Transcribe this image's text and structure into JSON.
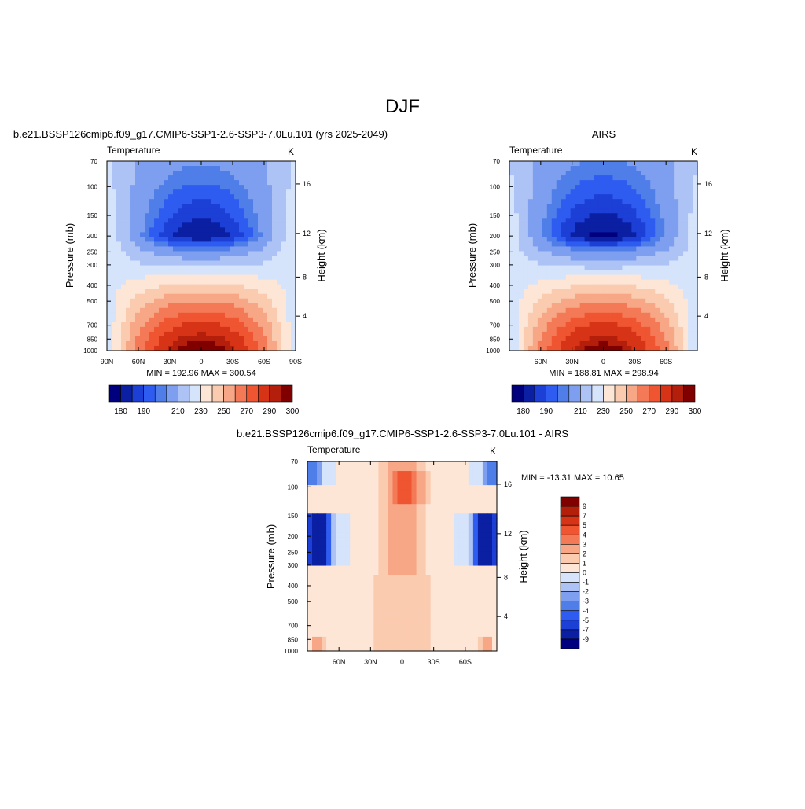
{
  "figure": {
    "title": "DJF"
  },
  "panels": [
    {
      "title": "b.e21.BSSP126cmip6.f09_g17.CMIP6-SSP1-2.6-SSP3-7.0Lu.101 (yrs 2025-2049)",
      "var_label": "Temperature",
      "units": "K",
      "ylabel": "Pressure (mb)",
      "right_label": "Height (km)",
      "stats": "MIN = 192.96  MAX = 300.54"
    },
    {
      "title": "AIRS",
      "var_label": "Temperature",
      "units": "K",
      "ylabel": "Pressure (mb)",
      "right_label": "Height (km)",
      "stats": "MIN = 188.81  MAX = 298.94"
    },
    {
      "title": "b.e21.BSSP126cmip6.f09_g17.CMIP6-SSP1-2.6-SSP3-7.0Lu.101 - AIRS",
      "var_label": "Temperature",
      "units": "K",
      "ylabel": "Pressure (mb)",
      "right_label": "Height (km)",
      "stats": "MIN = -13.31  MAX =  10.65"
    }
  ],
  "chart_data": [
    {
      "type": "heatmap",
      "title": "b.e21.BSSP126cmip6.f09_g17.CMIP6-SSP1-2.6-SSP3-7.0Lu.101 (yrs 2025-2049)",
      "ylabel": "Pressure (mb)",
      "y2label": "Height (km)",
      "x_ticks": [
        "90N",
        "60N",
        "30N",
        "0",
        "30S",
        "60S",
        "90S"
      ],
      "x_tick_values": [
        90,
        60,
        30,
        0,
        -30,
        -60,
        -90
      ],
      "xlim": [
        90,
        -90
      ],
      "y_ticks": [
        70,
        100,
        150,
        200,
        250,
        300,
        400,
        500,
        700,
        850,
        1000
      ],
      "ylim": [
        1000,
        70
      ],
      "y_scale": "log",
      "y2_ticks": [
        4,
        8,
        12,
        16
      ],
      "min": 192.96,
      "max": 300.54,
      "colorbar_levels": [
        180,
        185,
        190,
        195,
        200,
        210,
        220,
        230,
        240,
        250,
        260,
        270,
        280,
        290,
        295,
        300
      ],
      "colorbar_labels": [
        "180",
        "190",
        "210",
        "230",
        "250",
        "270",
        "290",
        "300"
      ],
      "colorbar_orientation": "horizontal"
    },
    {
      "type": "heatmap",
      "title": "AIRS",
      "ylabel": "Pressure (mb)",
      "y2label": "Height (km)",
      "x_ticks": [
        "60N",
        "30N",
        "0",
        "30S",
        "60S"
      ],
      "x_tick_values": [
        60,
        30,
        0,
        -30,
        -60
      ],
      "xlim": [
        90,
        -90
      ],
      "y_ticks": [
        70,
        100,
        150,
        200,
        250,
        300,
        400,
        500,
        700,
        850,
        1000
      ],
      "ylim": [
        1000,
        70
      ],
      "y_scale": "log",
      "y2_ticks": [
        4,
        8,
        12,
        16
      ],
      "min": 188.81,
      "max": 298.94,
      "colorbar_levels": [
        180,
        185,
        190,
        195,
        200,
        210,
        220,
        230,
        240,
        250,
        260,
        270,
        280,
        290,
        295,
        300
      ],
      "colorbar_labels": [
        "180",
        "190",
        "210",
        "230",
        "250",
        "270",
        "290",
        "300"
      ],
      "colorbar_orientation": "horizontal"
    },
    {
      "type": "heatmap",
      "title": "b.e21.BSSP126cmip6.f09_g17.CMIP6-SSP1-2.6-SSP3-7.0Lu.101 - AIRS",
      "ylabel": "Pressure (mb)",
      "y2label": "Height (km)",
      "x_ticks": [
        "60N",
        "30N",
        "0",
        "30S",
        "60S"
      ],
      "x_tick_values": [
        60,
        30,
        0,
        -30,
        -60
      ],
      "xlim": [
        90,
        -90
      ],
      "y_ticks": [
        70,
        100,
        150,
        200,
        250,
        300,
        400,
        500,
        700,
        850,
        1000
      ],
      "ylim": [
        1000,
        70
      ],
      "y_scale": "log",
      "y2_ticks": [
        4,
        8,
        12,
        16
      ],
      "min": -13.31,
      "max": 10.65,
      "colorbar_levels": [
        9,
        7,
        5,
        4,
        3,
        2,
        1,
        0,
        -1,
        -2,
        -3,
        -4,
        -5,
        -7,
        -9
      ],
      "colorbar_labels": [
        "9",
        "7",
        "5",
        "4",
        "3",
        "2",
        "1",
        "0",
        "-1",
        "-2",
        "-3",
        "-4",
        "-5",
        "-7",
        "-9"
      ],
      "colorbar_orientation": "vertical"
    }
  ],
  "colormaps": {
    "temperature": [
      "#00007f",
      "#0b1fa3",
      "#1c3fd6",
      "#2f5cf0",
      "#4f7ee8",
      "#7e9ff0",
      "#adc3f5",
      "#d5e3fb",
      "#fde6d6",
      "#fbcbb0",
      "#f7a686",
      "#f47a57",
      "#ef5530",
      "#d73417",
      "#b41f0c",
      "#800000"
    ],
    "difference": [
      "#800000",
      "#b41f0c",
      "#d73417",
      "#ef5530",
      "#f47a57",
      "#f7a686",
      "#fbcbb0",
      "#fde6d6",
      "#d5e3fb",
      "#adc3f5",
      "#7e9ff0",
      "#4f7ee8",
      "#2f5cf0",
      "#1c3fd6",
      "#0b1fa3",
      "#00007f"
    ]
  }
}
